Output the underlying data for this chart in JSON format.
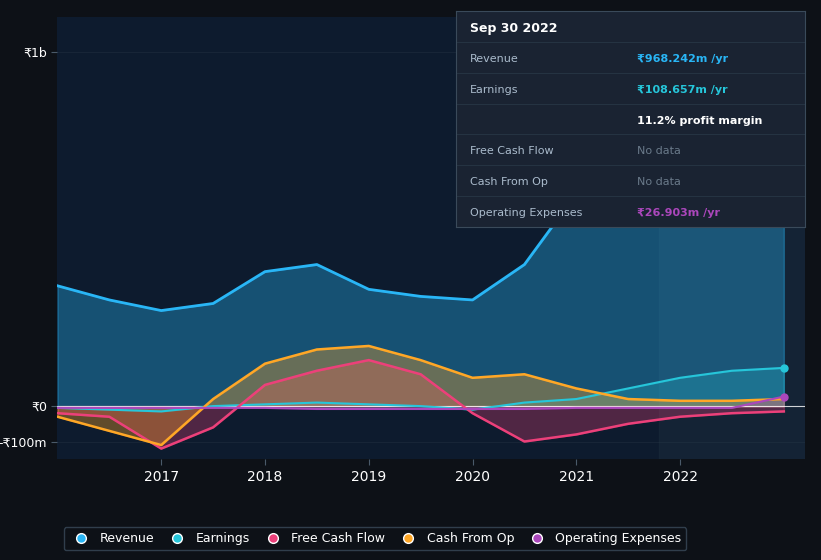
{
  "bg_color": "#0d1117",
  "plot_bg_color": "#0d1b2e",
  "y1b_label": "₹1b",
  "y0_label": "₹0",
  "ym100_label": "-₹100m",
  "years": [
    2016.0,
    2016.5,
    2017.0,
    2017.5,
    2018.0,
    2018.5,
    2019.0,
    2019.5,
    2020.0,
    2020.5,
    2021.0,
    2021.5,
    2022.0,
    2022.5,
    2023.0
  ],
  "revenue": [
    340,
    300,
    270,
    290,
    380,
    400,
    330,
    310,
    300,
    400,
    600,
    750,
    900,
    960,
    968
  ],
  "earnings": [
    -5,
    -10,
    -15,
    0,
    5,
    10,
    5,
    0,
    -10,
    10,
    20,
    50,
    80,
    100,
    108
  ],
  "free_cash_flow": [
    -20,
    -30,
    -120,
    -60,
    60,
    100,
    130,
    90,
    -20,
    -100,
    -80,
    -50,
    -30,
    -20,
    -15
  ],
  "cash_from_op": [
    -30,
    -70,
    -110,
    20,
    120,
    160,
    170,
    130,
    80,
    90,
    50,
    20,
    15,
    15,
    20
  ],
  "operating_expenses": [
    -5,
    -5,
    -5,
    -5,
    -5,
    -8,
    -8,
    -8,
    -8,
    -8,
    -5,
    -5,
    -5,
    -5,
    27
  ],
  "revenue_color": "#29b6f6",
  "earnings_color": "#26c6da",
  "fcf_color": "#ec407a",
  "cfop_color": "#ffa726",
  "opex_color": "#ab47bc",
  "revenue_label": "Revenue",
  "earnings_label": "Earnings",
  "fcf_label": "Free Cash Flow",
  "cfop_label": "Cash From Op",
  "opex_label": "Operating Expenses",
  "xlim": [
    2016.0,
    2023.2
  ],
  "ylim": [
    -150,
    1100
  ],
  "x_ticks": [
    2017,
    2018,
    2019,
    2020,
    2021,
    2022
  ],
  "highlight_x_start": 2021.8,
  "highlight_x_end": 2023.2,
  "tooltip_data": {
    "date": "Sep 30 2022",
    "revenue_label": "Revenue",
    "revenue_value": "₹968.242m /yr",
    "earnings_label": "Earnings",
    "earnings_value": "₹108.657m /yr",
    "profit_margin": "11.2% profit margin",
    "fcf_label": "Free Cash Flow",
    "fcf_value": "No data",
    "cfop_label": "Cash From Op",
    "cfop_value": "No data",
    "opex_label": "Operating Expenses",
    "opex_value": "₹26.903m /yr"
  }
}
